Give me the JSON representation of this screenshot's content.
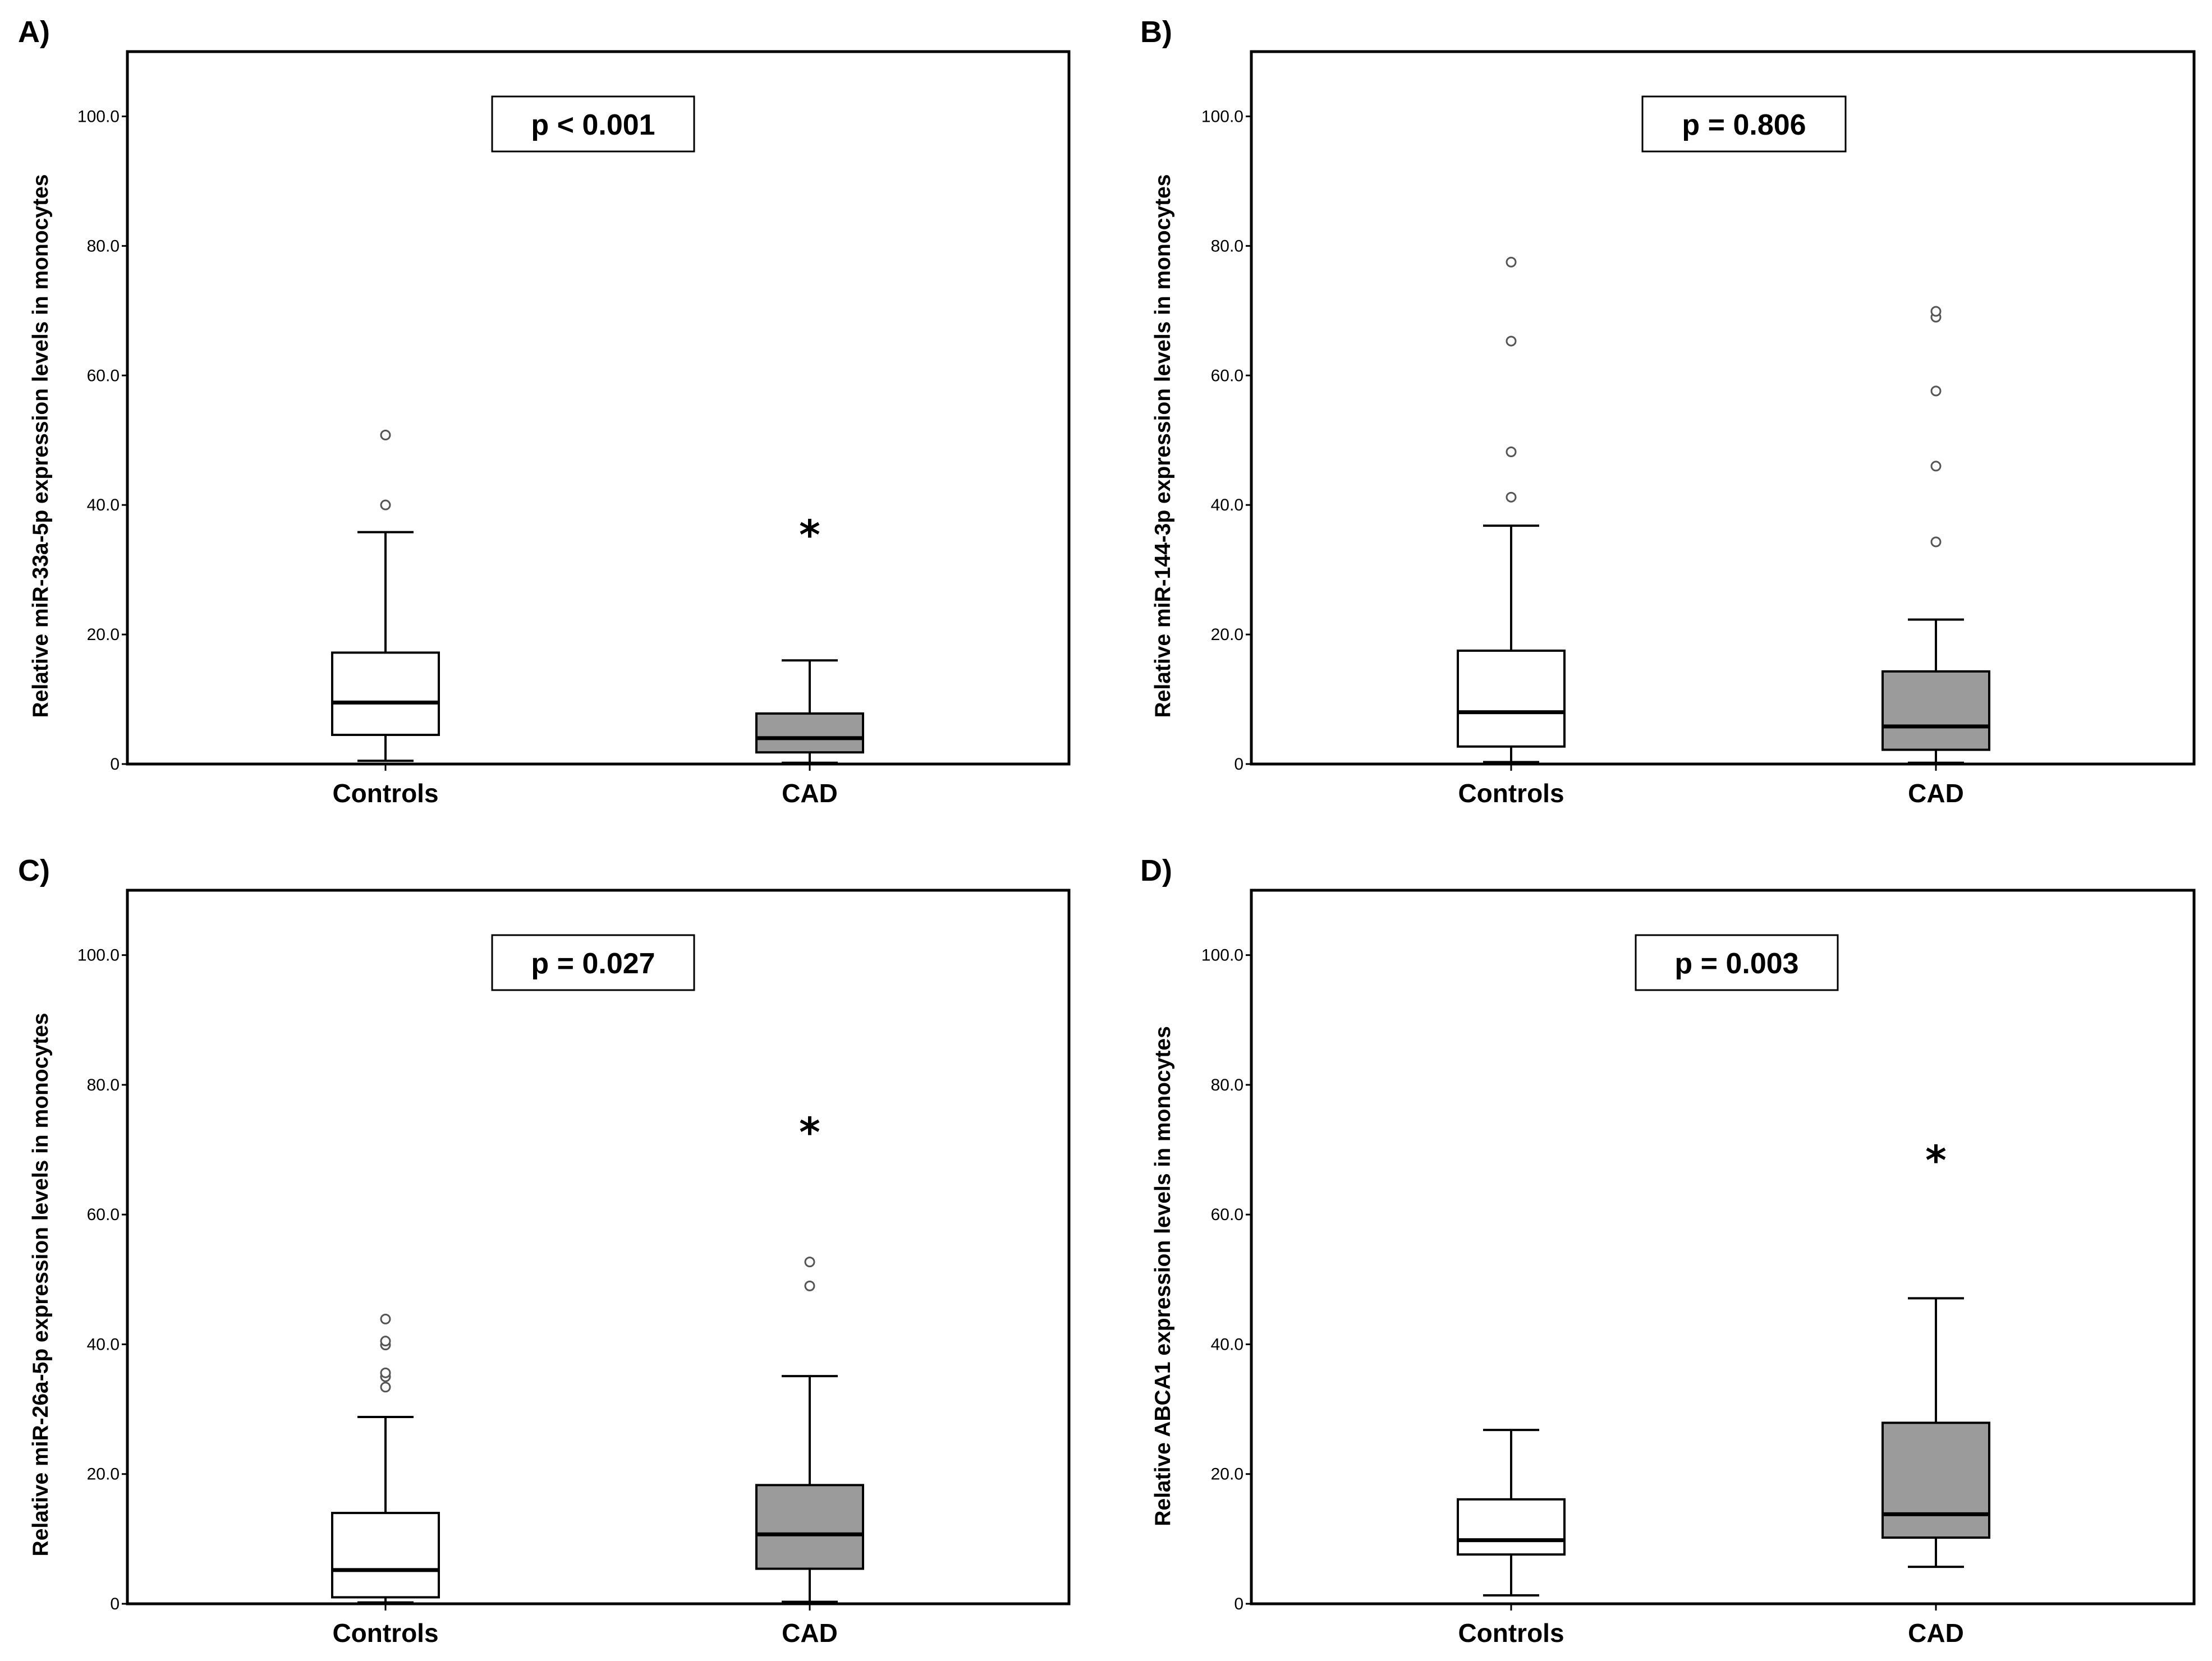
{
  "figure": {
    "colors": {
      "controls_box": "#ffffff",
      "cad_box": "#9b9b9b",
      "outlier": "#555555",
      "frame": "#000000"
    }
  },
  "chart_data": [
    {
      "panel": "A)",
      "type": "box",
      "ylabel": "Relative miR-33a-5p expression levels in monocytes",
      "p_value": "p < 0.001",
      "ylim": [
        0,
        110
      ],
      "yticks": [
        {
          "v": 0,
          "label": "0"
        },
        {
          "v": 20,
          "label": "20.0"
        },
        {
          "v": 40,
          "label": "40.0"
        },
        {
          "v": 60,
          "label": "60.0"
        },
        {
          "v": 80,
          "label": "80.0"
        },
        {
          "v": 100,
          "label": "100.0"
        }
      ],
      "categories": [
        "Controls",
        "CAD"
      ],
      "boxes": [
        {
          "group": "Controls",
          "whisker_low": 0.5,
          "q1": 4.5,
          "median": 9.5,
          "q3": 17.2,
          "whisker_high": 35.8,
          "outliers": [
            40.0,
            50.8
          ],
          "extremes": []
        },
        {
          "group": "CAD",
          "whisker_low": 0.2,
          "q1": 1.8,
          "median": 4.0,
          "q3": 7.8,
          "whisker_high": 16.0,
          "outliers": [],
          "extremes": [
            36.5
          ]
        }
      ]
    },
    {
      "panel": "B)",
      "type": "box",
      "ylabel": "Relative miR-144-3p expression levels in monocytes",
      "p_value": "p = 0.806",
      "ylim": [
        0,
        110
      ],
      "yticks": [
        {
          "v": 0,
          "label": "0"
        },
        {
          "v": 20,
          "label": "20.0"
        },
        {
          "v": 40,
          "label": "40.0"
        },
        {
          "v": 60,
          "label": "60.0"
        },
        {
          "v": 80,
          "label": "80.0"
        },
        {
          "v": 100,
          "label": "100.0"
        }
      ],
      "categories": [
        "Controls",
        "CAD"
      ],
      "boxes": [
        {
          "group": "Controls",
          "whisker_low": 0.3,
          "q1": 2.7,
          "median": 8.0,
          "q3": 17.5,
          "whisker_high": 36.8,
          "outliers": [
            41.2,
            48.2,
            65.3,
            77.5
          ],
          "extremes": []
        },
        {
          "group": "CAD",
          "whisker_low": 0.2,
          "q1": 2.2,
          "median": 5.8,
          "q3": 14.3,
          "whisker_high": 22.3,
          "outliers": [
            34.3,
            46.0,
            57.6,
            69.0,
            69.9
          ],
          "extremes": []
        }
      ]
    },
    {
      "panel": "C)",
      "type": "box",
      "ylabel": "Relative miR-26a-5p expression levels in monocytes",
      "p_value": "p = 0.027",
      "ylim": [
        0,
        110
      ],
      "yticks": [
        {
          "v": 0,
          "label": "0"
        },
        {
          "v": 20,
          "label": "20.0"
        },
        {
          "v": 40,
          "label": "40.0"
        },
        {
          "v": 60,
          "label": "60.0"
        },
        {
          "v": 80,
          "label": "80.0"
        },
        {
          "v": 100,
          "label": "100.0"
        }
      ],
      "categories": [
        "Controls",
        "CAD"
      ],
      "boxes": [
        {
          "group": "Controls",
          "whisker_low": 0.2,
          "q1": 1.0,
          "median": 5.2,
          "q3": 14.0,
          "whisker_high": 28.8,
          "outliers": [
            33.4,
            35.0,
            35.6,
            39.9,
            40.5,
            43.9
          ],
          "extremes": []
        },
        {
          "group": "CAD",
          "whisker_low": 0.3,
          "q1": 5.4,
          "median": 10.7,
          "q3": 18.3,
          "whisker_high": 35.1,
          "outliers": [
            49.0,
            52.7
          ],
          "extremes": [
            73.8
          ]
        }
      ]
    },
    {
      "panel": "D)",
      "type": "box",
      "ylabel": "Relative ABCA1 expression levels in monocytes",
      "p_value": "p = 0.003",
      "ylim": [
        0,
        110
      ],
      "yticks": [
        {
          "v": 0,
          "label": "0"
        },
        {
          "v": 20,
          "label": "20.0"
        },
        {
          "v": 40,
          "label": "40.0"
        },
        {
          "v": 60,
          "label": "60.0"
        },
        {
          "v": 80,
          "label": "80.0"
        },
        {
          "v": 100,
          "label": "100.0"
        }
      ],
      "categories": [
        "Controls",
        "CAD"
      ],
      "boxes": [
        {
          "group": "Controls",
          "whisker_low": 1.3,
          "q1": 7.6,
          "median": 9.8,
          "q3": 16.1,
          "whisker_high": 26.8,
          "outliers": [],
          "extremes": []
        },
        {
          "group": "CAD",
          "whisker_low": 5.7,
          "q1": 10.2,
          "median": 13.8,
          "q3": 27.9,
          "whisker_high": 47.1,
          "outliers": [],
          "extremes": [
            69.5
          ]
        }
      ]
    }
  ]
}
